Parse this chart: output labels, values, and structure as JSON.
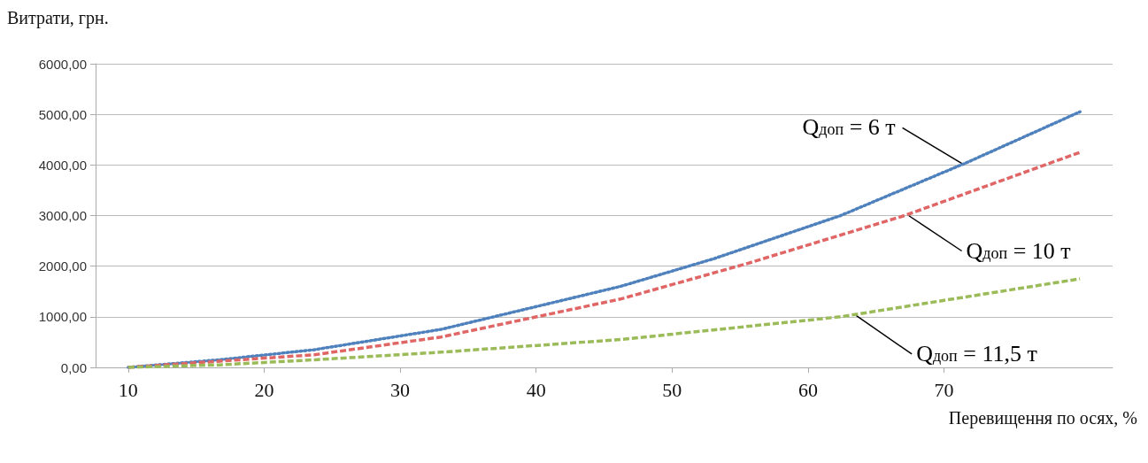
{
  "chart_data": {
    "type": "line",
    "xlabel": "Перевищення по осях, %",
    "ylabel": "Витрати, грн.",
    "xlim": [
      7.6,
      82.4
    ],
    "xticks": [
      10,
      20,
      30,
      40,
      50,
      60,
      70
    ],
    "ylim": [
      0,
      6000
    ],
    "yticks": [
      {
        "value": 0,
        "label": "0,00"
      },
      {
        "value": 1000,
        "label": "1000,00"
      },
      {
        "value": 2000,
        "label": "2000,00"
      },
      {
        "value": 3000,
        "label": "3000,00"
      },
      {
        "value": 4000,
        "label": "4000,00"
      },
      {
        "value": 5000,
        "label": "5000,00"
      },
      {
        "value": 6000,
        "label": "6000,00"
      }
    ],
    "grid": "y",
    "marker": "none",
    "series": [
      {
        "color": "#4f81bd",
        "line_style": "dotted",
        "x": [
          10,
          16.7,
          23.7,
          33,
          46.2,
          53.1,
          62.4,
          71.7,
          80
        ],
        "values": [
          0,
          150,
          350,
          750,
          1600,
          2150,
          3000,
          4050,
          5050
        ]
      },
      {
        "color": "#e06666",
        "line_style": "dashed",
        "x": [
          10,
          23.7,
          33,
          46.2,
          55.5,
          67.1,
          80
        ],
        "values": [
          0,
          250,
          600,
          1350,
          2050,
          3000,
          4250
        ]
      },
      {
        "color": "#9bbb59",
        "line_style": "dashed",
        "x": [
          10,
          16.7,
          23.7,
          33,
          46.2,
          62.4,
          80
        ],
        "values": [
          0,
          50,
          150,
          300,
          550,
          1000,
          1750
        ]
      }
    ],
    "annotations": [
      {
        "text": "Q$_{доп}$ = 6 т",
        "x": 71.5,
        "y": 4000
      },
      {
        "text": "Q$_{доп}$ = 10 т",
        "x": 67.4,
        "y": 3000
      },
      {
        "text": "Q$_{доп}$ = 11,5 т",
        "x": 63.4,
        "y": 1050
      }
    ]
  }
}
